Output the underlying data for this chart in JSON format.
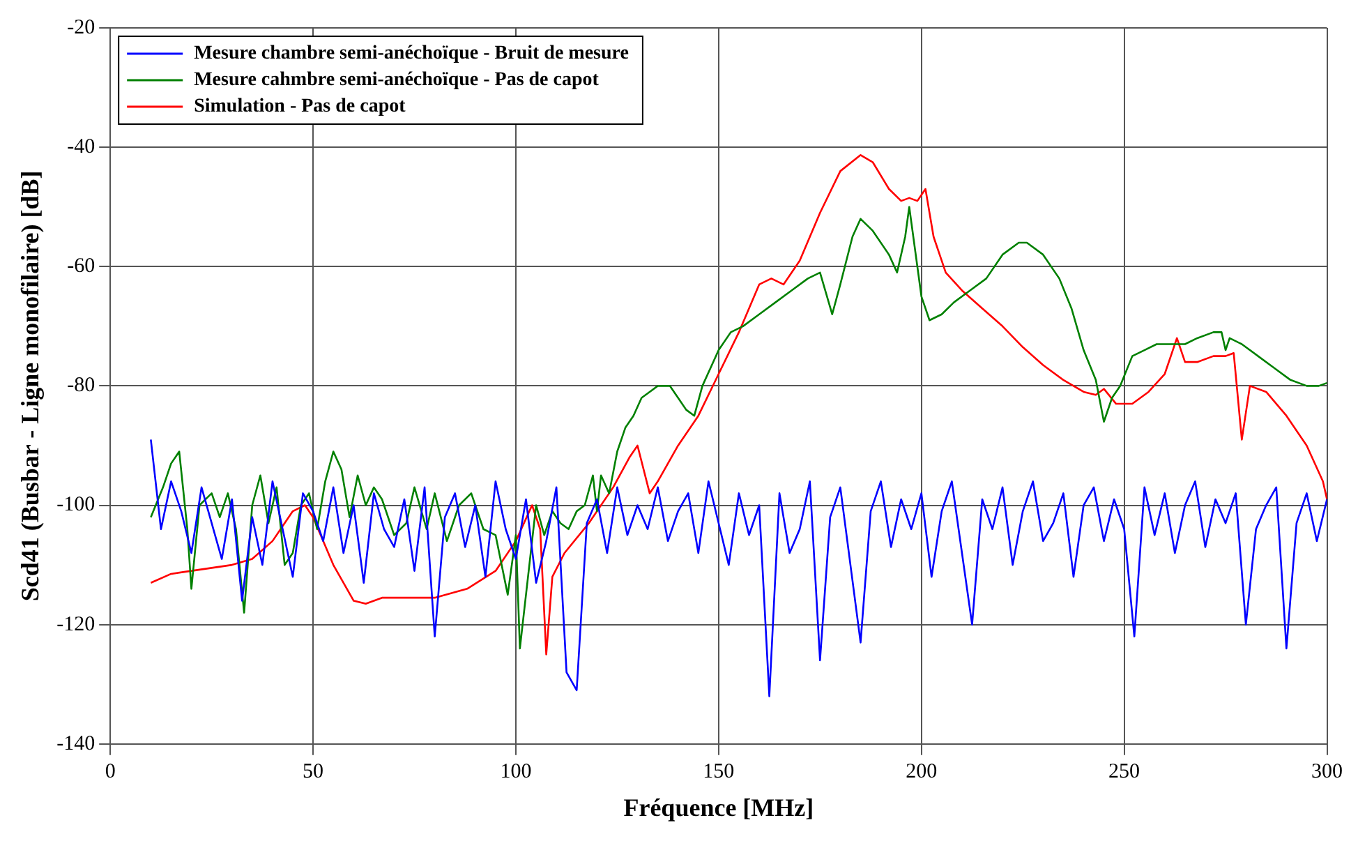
{
  "chart_data": {
    "type": "line",
    "xlabel": "Fréquence [MHz]",
    "ylabel": "Scd41 (Busbar - Ligne monofilaire) [dB]",
    "xlim": [
      0,
      300
    ],
    "xticks": [
      0,
      50,
      100,
      150,
      200,
      250,
      300
    ],
    "ylim": [
      -140,
      -20
    ],
    "yticks": [
      -140,
      -120,
      -100,
      -80,
      -60,
      -40,
      -20
    ],
    "grid": true,
    "legend": "top left",
    "marker": "none",
    "line_style": "solid",
    "series": [
      {
        "name": "Mesure chambre semi-anéchoïque - Bruit de mesure",
        "color": "#0000ff",
        "x": [
          10,
          12.5,
          15,
          17.5,
          20,
          22.5,
          25,
          27.5,
          30,
          32.5,
          35,
          37.5,
          40,
          42.5,
          45,
          47.5,
          50,
          52.5,
          55,
          57.5,
          60,
          62.5,
          65,
          67.5,
          70,
          72.5,
          75,
          77.5,
          80,
          82.5,
          85,
          87.5,
          90,
          92.5,
          95,
          97.5,
          100,
          102.5,
          105,
          107.5,
          110,
          112.5,
          115,
          117.5,
          120,
          122.5,
          125,
          127.5,
          130,
          132.5,
          135,
          137.5,
          140,
          142.5,
          145,
          147.5,
          150,
          152.5,
          155,
          157.5,
          160,
          162.5,
          165,
          167.5,
          170,
          172.5,
          175,
          177.5,
          180,
          182.5,
          185,
          187.5,
          190,
          192.5,
          195,
          197.5,
          200,
          202.5,
          205,
          207.5,
          210,
          212.5,
          215,
          217.5,
          220,
          222.5,
          225,
          227.5,
          230,
          232.5,
          235,
          237.5,
          240,
          242.5,
          245,
          247.5,
          250,
          252.5,
          255,
          257.5,
          260,
          262.5,
          265,
          267.5,
          270,
          272.5,
          275,
          277.5,
          280,
          282.5,
          285,
          287.5,
          290,
          292.5,
          295,
          297.5,
          300
        ],
        "values": [
          -89,
          -104,
          -96,
          -101,
          -108,
          -97,
          -103,
          -109,
          -99,
          -116,
          -102,
          -110,
          -96,
          -104,
          -112,
          -98,
          -101,
          -106,
          -97,
          -108,
          -100,
          -113,
          -98,
          -104,
          -107,
          -99,
          -111,
          -97,
          -122,
          -102,
          -98,
          -107,
          -100,
          -112,
          -96,
          -104,
          -109,
          -99,
          -113,
          -106,
          -97,
          -128,
          -131,
          -103,
          -99,
          -108,
          -97,
          -105,
          -100,
          -104,
          -97,
          -106,
          -101,
          -98,
          -108,
          -96,
          -103,
          -110,
          -98,
          -105,
          -100,
          -132,
          -98,
          -108,
          -104,
          -96,
          -126,
          -102,
          -97,
          -110,
          -123,
          -101,
          -96,
          -107,
          -99,
          -104,
          -98,
          -112,
          -101,
          -96,
          -108,
          -120,
          -99,
          -104,
          -97,
          -110,
          -101,
          -96,
          -106,
          -103,
          -98,
          -112,
          -100,
          -97,
          -106,
          -99,
          -104,
          -122,
          -97,
          -105,
          -98,
          -108,
          -100,
          -96,
          -107,
          -99,
          -103,
          -98,
          -120,
          -104,
          -100,
          -97,
          -124,
          -103,
          -98,
          -106,
          -99
        ]
      },
      {
        "name": "Mesure cahmbre semi-anéchoïque - Pas de capot",
        "color": "#008000",
        "x": [
          10,
          13,
          15,
          17,
          19,
          20,
          22,
          25,
          27,
          29,
          31,
          33,
          35,
          37,
          39,
          41,
          43,
          45,
          47,
          49,
          51,
          53,
          55,
          57,
          59,
          61,
          63,
          65,
          67,
          70,
          73,
          75,
          78,
          80,
          83,
          86,
          89,
          92,
          95,
          98,
          100,
          101,
          103,
          105,
          107,
          109,
          111,
          113,
          115,
          117,
          119,
          120,
          121,
          123,
          125,
          127,
          129,
          131,
          133,
          135,
          138,
          140,
          142,
          144,
          146,
          148,
          150,
          153,
          156,
          160,
          164,
          168,
          172,
          175,
          178,
          180,
          183,
          185,
          188,
          192,
          194,
          196,
          197,
          199,
          200,
          202,
          205,
          208,
          212,
          216,
          220,
          224,
          226,
          230,
          234,
          237,
          240,
          243,
          245,
          247,
          249,
          252,
          255,
          258,
          262,
          265,
          268,
          272,
          274,
          275,
          276,
          279,
          283,
          287,
          291,
          295,
          298,
          300
        ],
        "values": [
          -102,
          -97,
          -93,
          -91,
          -104,
          -114,
          -100,
          -98,
          -102,
          -98,
          -104,
          -118,
          -100,
          -95,
          -103,
          -97,
          -110,
          -108,
          -100,
          -98,
          -104,
          -96,
          -91,
          -94,
          -102,
          -95,
          -100,
          -97,
          -99,
          -105,
          -103,
          -97,
          -104,
          -98,
          -106,
          -100,
          -98,
          -104,
          -105,
          -115,
          -105,
          -124,
          -112,
          -100,
          -105,
          -101,
          -103,
          -104,
          -101,
          -100,
          -95,
          -101,
          -95,
          -98,
          -91,
          -87,
          -85,
          -82,
          -81,
          -80,
          -80,
          -82,
          -84,
          -85,
          -80,
          -77,
          -74,
          -71,
          -70,
          -68,
          -66,
          -64,
          -62,
          -61,
          -68,
          -63,
          -55,
          -52,
          -54,
          -58,
          -61,
          -55,
          -50,
          -60,
          -65,
          -69,
          -68,
          -66,
          -64,
          -62,
          -58,
          -56,
          -56,
          -58,
          -62,
          -67,
          -74,
          -79,
          -86,
          -82,
          -80,
          -75,
          -74,
          -73,
          -73,
          -73,
          -72,
          -71,
          -71,
          -74,
          -72,
          -73,
          -75,
          -77,
          -79,
          -80,
          -80,
          -79.5
        ]
      },
      {
        "name": "Simulation - Pas de capot",
        "color": "#ff0000",
        "x": [
          10,
          15,
          20,
          25,
          30,
          35,
          40,
          45,
          48,
          50,
          55,
          60,
          63,
          67,
          72,
          80,
          88,
          95,
          100,
          104,
          106,
          107.5,
          109,
          112,
          118,
          124,
          128,
          130,
          133,
          135,
          140,
          145,
          150,
          155,
          160,
          163,
          166,
          170,
          175,
          180,
          185,
          188,
          192,
          195,
          197,
          199,
          201,
          203,
          206,
          210,
          215,
          220,
          225,
          230,
          235,
          240,
          243,
          245,
          248,
          252,
          256,
          260,
          263,
          265,
          268,
          272,
          275,
          277,
          279,
          281,
          285,
          290,
          295,
          299,
          300
        ],
        "values": [
          -113,
          -111.5,
          -111,
          -110.5,
          -110,
          -109,
          -106,
          -101,
          -100,
          -102,
          -110,
          -116,
          -116.5,
          -115.5,
          -115.5,
          -115.5,
          -114,
          -111,
          -106,
          -100,
          -104,
          -125,
          -112,
          -108,
          -103,
          -97,
          -92,
          -90,
          -98,
          -96,
          -90,
          -85,
          -78,
          -71,
          -63,
          -62,
          -63,
          -59,
          -51,
          -44,
          -41.3,
          -42.5,
          -47,
          -49,
          -48.5,
          -49,
          -47,
          -55,
          -61,
          -64,
          -67,
          -70,
          -73.5,
          -76.5,
          -79,
          -81,
          -81.5,
          -80.5,
          -83,
          -83,
          -81,
          -78,
          -72,
          -76,
          -76,
          -75,
          -75,
          -74.5,
          -89,
          -80,
          -81,
          -85,
          -90,
          -96,
          -99
        ]
      }
    ]
  }
}
